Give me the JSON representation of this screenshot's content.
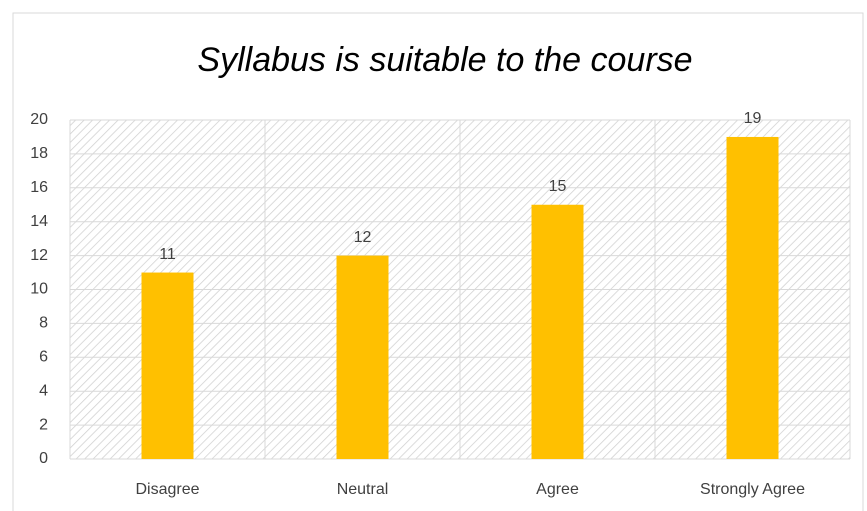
{
  "chart_data": {
    "type": "bar",
    "title": "Syllabus is suitable to the course",
    "categories": [
      "Disagree",
      "Neutral",
      "Agree",
      "Strongly Agree"
    ],
    "values": [
      11,
      12,
      15,
      19
    ],
    "color": "#ffc000",
    "ylim": [
      0,
      20
    ],
    "yticks": [
      0,
      2,
      4,
      6,
      8,
      10,
      12,
      14,
      16,
      18,
      20
    ],
    "grid": true
  }
}
